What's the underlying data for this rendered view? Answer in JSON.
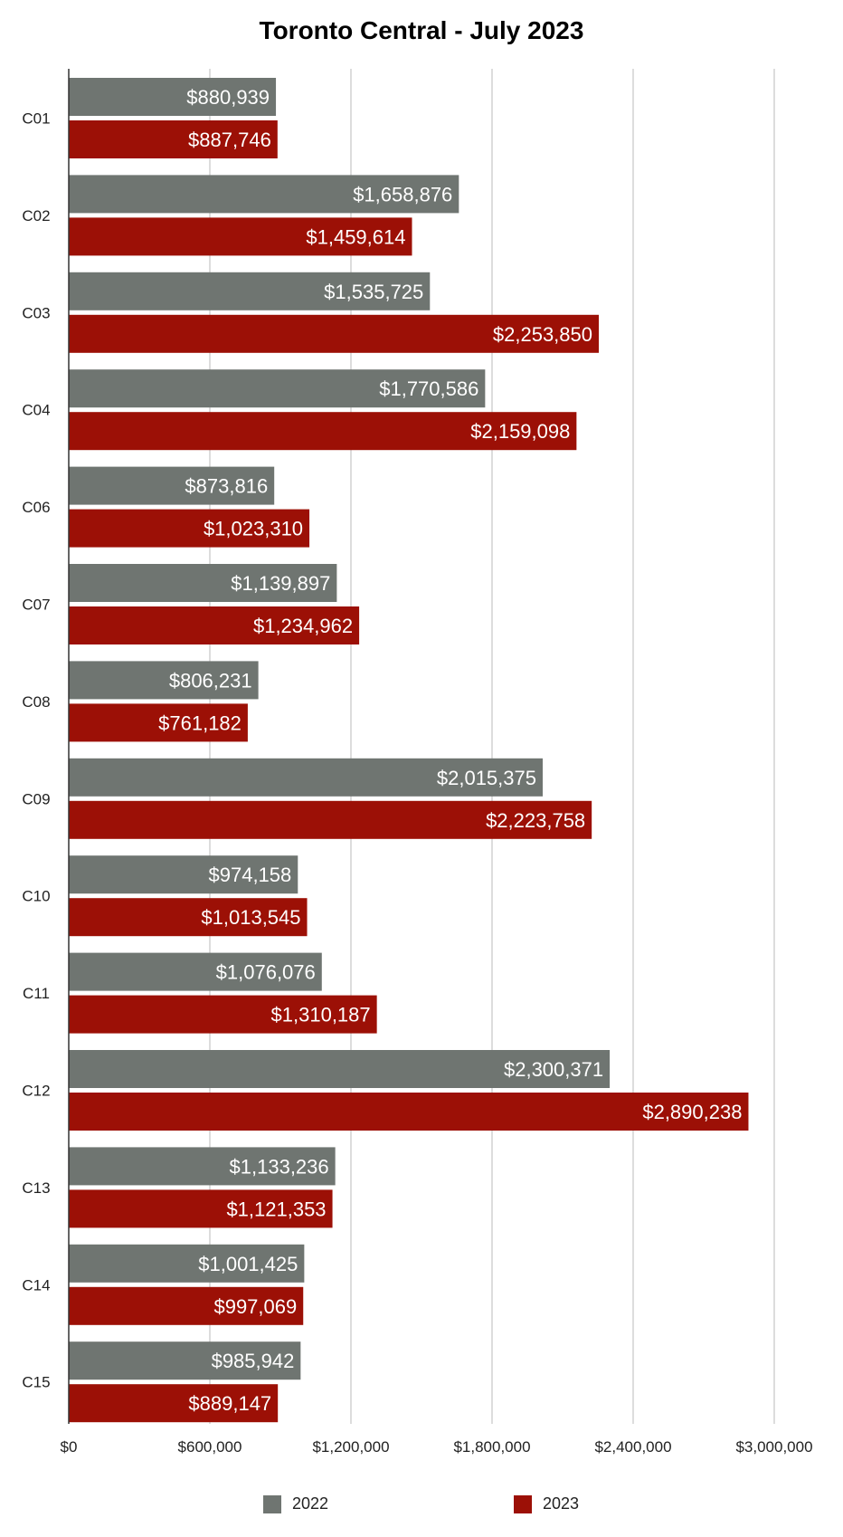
{
  "chart_data": {
    "type": "bar",
    "orientation": "horizontal",
    "title": "Toronto Central - July 2023",
    "xlabel": "",
    "ylabel": "",
    "categories": [
      "C01",
      "C02",
      "C03",
      "C04",
      "C06",
      "C07",
      "C08",
      "C09",
      "C10",
      "C11",
      "C12",
      "C13",
      "C14",
      "C15"
    ],
    "series": [
      {
        "name": "2022",
        "color": "#6f7571",
        "values": [
          880939,
          1658876,
          1535725,
          1770586,
          873816,
          1139897,
          806231,
          2015375,
          974158,
          1076076,
          2300371,
          1133236,
          1001425,
          985942
        ],
        "labels": [
          "$880,939",
          "$1,658,876",
          "$1,535,725",
          "$1,770,586",
          "$873,816",
          "$1,139,897",
          "$806,231",
          "$2,015,375",
          "$974,158",
          "$1,076,076",
          "$2,300,371",
          "$1,133,236",
          "$1,001,425",
          "$985,942"
        ]
      },
      {
        "name": "2023",
        "color": "#9c1006",
        "values": [
          887746,
          1459614,
          2253850,
          2159098,
          1023310,
          1234962,
          761182,
          2223758,
          1013545,
          1310187,
          2890238,
          1121353,
          997069,
          889147
        ],
        "labels": [
          "$887,746",
          "$1,459,614",
          "$2,253,850",
          "$2,159,098",
          "$1,023,310",
          "$1,234,962",
          "$761,182",
          "$2,223,758",
          "$1,013,545",
          "$1,310,187",
          "$2,890,238",
          "$1,121,353",
          "$997,069",
          "$889,147"
        ]
      }
    ],
    "xlim": [
      0,
      3000000
    ],
    "xticks": [
      0,
      600000,
      1200000,
      1800000,
      2400000,
      3000000
    ],
    "xtick_labels": [
      "$0",
      "$600,000",
      "$1,200,000",
      "$1,800,000",
      "$2,400,000",
      "$3,000,000"
    ],
    "grid": "vertical",
    "legend": "bottom"
  }
}
